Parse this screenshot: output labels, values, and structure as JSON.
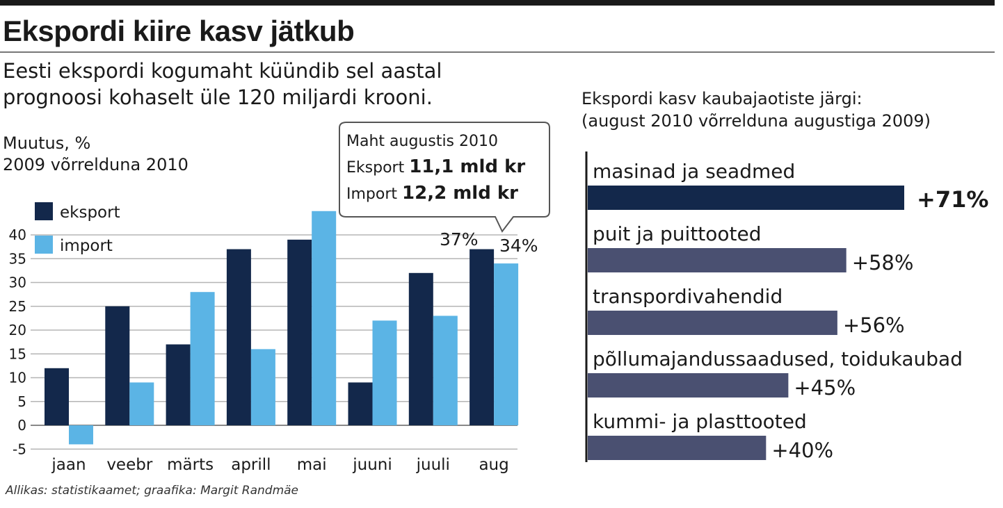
{
  "title": "Ekspordi kiire kasv jätkub",
  "subtitle": "Eesti ekspordi kogumaht küündib sel aastal prognoosi kohaselt üle 120 miljardi krooni.",
  "source": "Allikas: statistikaamet; graafika: Margit Randmäe",
  "callout": {
    "heading": "Maht augustis 2010",
    "export_label": "Eksport",
    "export_value": "11,1 mld kr",
    "import_label": "Import",
    "import_value": "12,2 mld kr"
  },
  "colors": {
    "export": "#13284b",
    "import": "#5bb4e5",
    "category_bar": "#4a5071"
  },
  "chart_data": [
    {
      "type": "bar",
      "title": "Muutus, % 2009 võrrelduna 2010",
      "ylabel": "Muutus, %",
      "ylim": [
        -5,
        45
      ],
      "yticks": [
        -5,
        0,
        5,
        10,
        15,
        20,
        25,
        30,
        35,
        40
      ],
      "grid": true,
      "legend": "top-left",
      "categories": [
        "jaan",
        "veebr",
        "märts",
        "aprill",
        "mai",
        "juuni",
        "juuli",
        "aug"
      ],
      "series": [
        {
          "name": "eksport",
          "values": [
            12,
            25,
            17,
            37,
            39,
            9,
            32,
            37
          ]
        },
        {
          "name": "import",
          "values": [
            -4,
            9,
            28,
            16,
            45,
            22,
            23,
            34
          ]
        }
      ],
      "annotations": [
        "37%",
        "34%"
      ]
    },
    {
      "type": "bar",
      "orientation": "horizontal",
      "title": "Ekspordi kasv kaubajaotiste järgi: (august 2010 võrrelduna augustiga 2009)",
      "categories": [
        "masinad ja seadmed",
        "puit ja puittooted",
        "transpordivahendid",
        "põllumajandussaadused, toidukaubad",
        "kummi- ja plasttooted"
      ],
      "values": [
        71,
        58,
        56,
        45,
        40
      ],
      "value_labels": [
        "+71%",
        "+58%",
        "+56%",
        "+45%",
        "+40%"
      ]
    }
  ]
}
